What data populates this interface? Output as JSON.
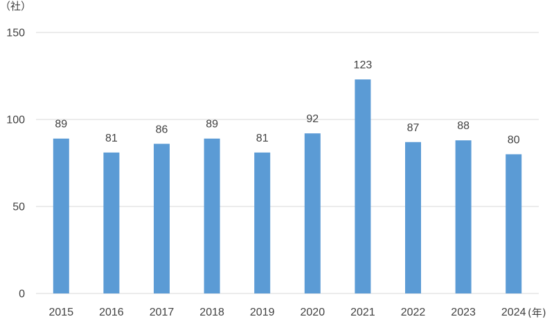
{
  "chart_data": {
    "type": "bar",
    "categories": [
      "2015",
      "2016",
      "2017",
      "2018",
      "2019",
      "2020",
      "2021",
      "2022",
      "2023",
      "2024"
    ],
    "values": [
      89,
      81,
      86,
      89,
      81,
      92,
      123,
      87,
      88,
      80
    ],
    "title": "",
    "ylabel": "（社）",
    "xlabel": "(年)",
    "ylim": [
      0,
      150
    ],
    "yticks": [
      0,
      50,
      100,
      150
    ],
    "grid": true,
    "legend": "none",
    "data_labels": true,
    "bar_color": "#5b9bd5",
    "grid_color": "#d9d9d9",
    "text_color": "#404040"
  }
}
